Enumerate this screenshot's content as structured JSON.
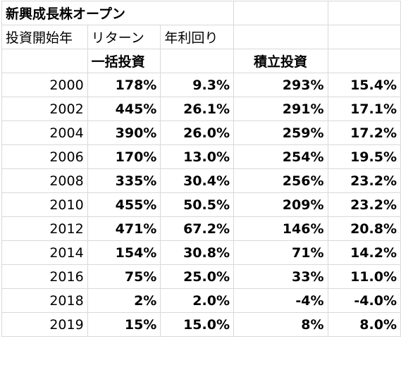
{
  "sheet": {
    "title": "新興成長株オープン",
    "headers": {
      "start_year": "投資開始年",
      "return": "リターン",
      "annual_rate": "年利回り"
    },
    "groups": {
      "lump_sum": "一括投資",
      "accumulation": "積立投資"
    },
    "rows": [
      {
        "year": "2000",
        "lump_return": "178%",
        "lump_rate": "9.3%",
        "acc_return": "293%",
        "acc_rate": "15.4%"
      },
      {
        "year": "2002",
        "lump_return": "445%",
        "lump_rate": "26.1%",
        "acc_return": "291%",
        "acc_rate": "17.1%"
      },
      {
        "year": "2004",
        "lump_return": "390%",
        "lump_rate": "26.0%",
        "acc_return": "259%",
        "acc_rate": "17.2%"
      },
      {
        "year": "2006",
        "lump_return": "170%",
        "lump_rate": "13.0%",
        "acc_return": "254%",
        "acc_rate": "19.5%"
      },
      {
        "year": "2008",
        "lump_return": "335%",
        "lump_rate": "30.4%",
        "acc_return": "256%",
        "acc_rate": "23.2%"
      },
      {
        "year": "2010",
        "lump_return": "455%",
        "lump_rate": "50.5%",
        "acc_return": "209%",
        "acc_rate": "23.2%"
      },
      {
        "year": "2012",
        "lump_return": "471%",
        "lump_rate": "67.2%",
        "acc_return": "146%",
        "acc_rate": "20.8%"
      },
      {
        "year": "2014",
        "lump_return": "154%",
        "lump_rate": "30.8%",
        "acc_return": "71%",
        "acc_rate": "14.2%"
      },
      {
        "year": "2016",
        "lump_return": "75%",
        "lump_rate": "25.0%",
        "acc_return": "33%",
        "acc_rate": "11.0%"
      },
      {
        "year": "2018",
        "lump_return": "2%",
        "lump_rate": "2.0%",
        "acc_return": "-4%",
        "acc_rate": "-4.0%"
      },
      {
        "year": "2019",
        "lump_return": "15%",
        "lump_rate": "15.0%",
        "acc_return": "8%",
        "acc_rate": "8.0%"
      }
    ]
  }
}
